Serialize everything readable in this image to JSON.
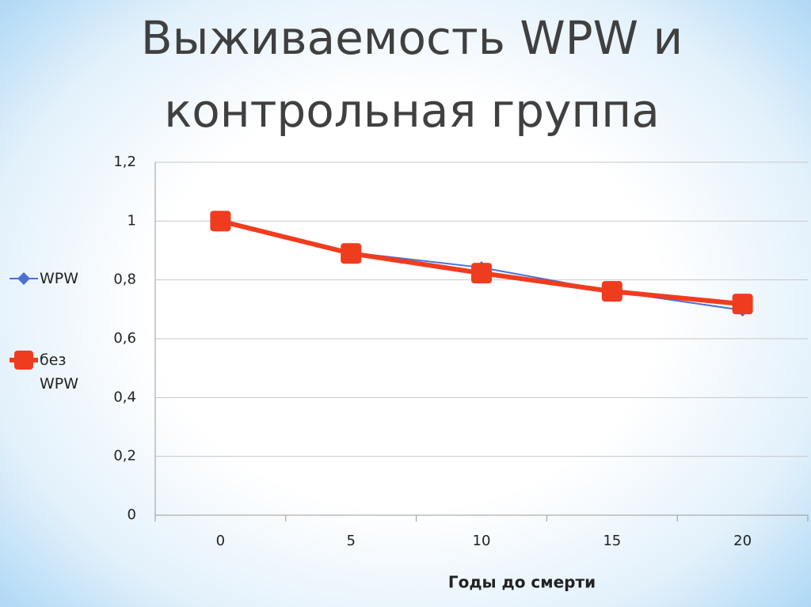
{
  "chart_data": {
    "type": "line",
    "title": "Выживаемость WPW и контрольная группа",
    "x_label": "Годы до смерти",
    "categories": [
      "0",
      "5",
      "10",
      "15",
      "20"
    ],
    "series": [
      {
        "name": "WPW",
        "color": "#4a6fd8",
        "values": [
          1,
          0.893,
          0.842,
          0.761,
          0.697
        ]
      },
      {
        "name": "без WPW",
        "color": "#f03c1e",
        "values": [
          1,
          0.89,
          0.823,
          0.761,
          0.718
        ]
      }
    ],
    "ylim": [
      0,
      1.2
    ],
    "yticks": [
      0,
      {
        "value": 0.2,
        "label": "0,2"
      },
      {
        "value": 0.4,
        "label": "0,4"
      },
      {
        "value": 0.6,
        "label": "0,6"
      },
      {
        "value": 0.8,
        "label": "0,8"
      },
      1,
      {
        "value": 1.2,
        "label": "1,2"
      }
    ],
    "grid": true,
    "legend": "left"
  }
}
